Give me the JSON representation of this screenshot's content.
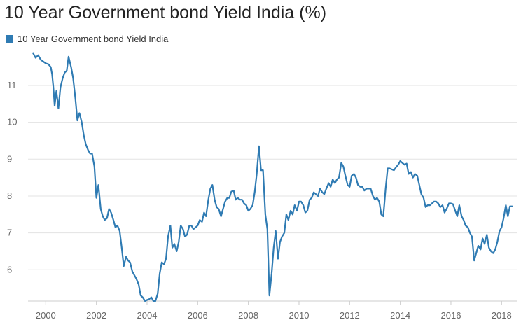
{
  "colors": {
    "series": "#2f7bb3",
    "grid": "#e3e3e3",
    "axis": "#cccccc"
  },
  "chart_data": {
    "type": "line",
    "title": "10 Year Government bond Yield India (%)",
    "xlabel": "",
    "ylabel": "",
    "grid": true,
    "legend_position": "top-left",
    "xlim": [
      1999.3,
      2018.6
    ],
    "ylim": [
      5.15,
      11.95
    ],
    "x_ticks": [
      "2000",
      "2002",
      "2004",
      "2006",
      "2008",
      "2010",
      "2012",
      "2014",
      "2016",
      "2018"
    ],
    "y_ticks": [
      "6",
      "7",
      "8",
      "9",
      "10",
      "11"
    ],
    "series": [
      {
        "name": "10 Year Government bond Yield India",
        "points": [
          [
            1999.5,
            11.88
          ],
          [
            1999.6,
            11.75
          ],
          [
            1999.7,
            11.82
          ],
          [
            1999.8,
            11.7
          ],
          [
            1999.9,
            11.65
          ],
          [
            2000.0,
            11.6
          ],
          [
            2000.1,
            11.58
          ],
          [
            2000.2,
            11.5
          ],
          [
            2000.25,
            11.3
          ],
          [
            2000.3,
            10.95
          ],
          [
            2000.35,
            10.45
          ],
          [
            2000.42,
            10.85
          ],
          [
            2000.5,
            10.38
          ],
          [
            2000.58,
            10.95
          ],
          [
            2000.67,
            11.2
          ],
          [
            2000.75,
            11.35
          ],
          [
            2000.83,
            11.4
          ],
          [
            2000.9,
            11.78
          ],
          [
            2001.0,
            11.5
          ],
          [
            2001.08,
            11.2
          ],
          [
            2001.17,
            10.65
          ],
          [
            2001.25,
            10.05
          ],
          [
            2001.33,
            10.25
          ],
          [
            2001.42,
            10.0
          ],
          [
            2001.5,
            9.65
          ],
          [
            2001.58,
            9.4
          ],
          [
            2001.67,
            9.25
          ],
          [
            2001.75,
            9.15
          ],
          [
            2001.83,
            9.15
          ],
          [
            2001.92,
            8.8
          ],
          [
            2002.0,
            7.95
          ],
          [
            2002.08,
            8.3
          ],
          [
            2002.17,
            7.65
          ],
          [
            2002.25,
            7.45
          ],
          [
            2002.33,
            7.35
          ],
          [
            2002.42,
            7.4
          ],
          [
            2002.5,
            7.65
          ],
          [
            2002.58,
            7.55
          ],
          [
            2002.67,
            7.35
          ],
          [
            2002.75,
            7.15
          ],
          [
            2002.83,
            7.2
          ],
          [
            2002.92,
            7.05
          ],
          [
            2003.0,
            6.6
          ],
          [
            2003.08,
            6.1
          ],
          [
            2003.17,
            6.35
          ],
          [
            2003.25,
            6.25
          ],
          [
            2003.33,
            6.2
          ],
          [
            2003.42,
            5.95
          ],
          [
            2003.5,
            5.85
          ],
          [
            2003.58,
            5.75
          ],
          [
            2003.67,
            5.6
          ],
          [
            2003.75,
            5.3
          ],
          [
            2003.83,
            5.25
          ],
          [
            2003.92,
            5.15
          ],
          [
            2004.0,
            5.18
          ],
          [
            2004.08,
            5.2
          ],
          [
            2004.17,
            5.25
          ],
          [
            2004.25,
            5.15
          ],
          [
            2004.33,
            5.15
          ],
          [
            2004.42,
            5.35
          ],
          [
            2004.5,
            5.9
          ],
          [
            2004.58,
            6.2
          ],
          [
            2004.67,
            6.15
          ],
          [
            2004.75,
            6.3
          ],
          [
            2004.83,
            6.9
          ],
          [
            2004.92,
            7.2
          ],
          [
            2005.0,
            6.6
          ],
          [
            2005.08,
            6.7
          ],
          [
            2005.17,
            6.5
          ],
          [
            2005.25,
            6.75
          ],
          [
            2005.33,
            7.2
          ],
          [
            2005.42,
            7.1
          ],
          [
            2005.5,
            6.9
          ],
          [
            2005.58,
            6.95
          ],
          [
            2005.67,
            7.2
          ],
          [
            2005.75,
            7.2
          ],
          [
            2005.83,
            7.1
          ],
          [
            2005.92,
            7.15
          ],
          [
            2006.0,
            7.2
          ],
          [
            2006.08,
            7.35
          ],
          [
            2006.17,
            7.3
          ],
          [
            2006.25,
            7.55
          ],
          [
            2006.33,
            7.45
          ],
          [
            2006.42,
            7.9
          ],
          [
            2006.5,
            8.2
          ],
          [
            2006.58,
            8.3
          ],
          [
            2006.67,
            7.9
          ],
          [
            2006.75,
            7.7
          ],
          [
            2006.83,
            7.65
          ],
          [
            2006.92,
            7.45
          ],
          [
            2007.0,
            7.65
          ],
          [
            2007.08,
            7.85
          ],
          [
            2007.17,
            7.95
          ],
          [
            2007.25,
            7.95
          ],
          [
            2007.33,
            8.12
          ],
          [
            2007.42,
            8.15
          ],
          [
            2007.5,
            7.9
          ],
          [
            2007.58,
            7.95
          ],
          [
            2007.67,
            7.9
          ],
          [
            2007.75,
            7.9
          ],
          [
            2007.83,
            7.8
          ],
          [
            2007.92,
            7.75
          ],
          [
            2008.0,
            7.6
          ],
          [
            2008.08,
            7.65
          ],
          [
            2008.17,
            7.75
          ],
          [
            2008.25,
            8.1
          ],
          [
            2008.33,
            8.6
          ],
          [
            2008.42,
            9.35
          ],
          [
            2008.5,
            8.7
          ],
          [
            2008.58,
            8.7
          ],
          [
            2008.67,
            7.5
          ],
          [
            2008.75,
            7.1
          ],
          [
            2008.83,
            5.3
          ],
          [
            2008.92,
            5.9
          ],
          [
            2009.0,
            6.6
          ],
          [
            2009.08,
            7.05
          ],
          [
            2009.17,
            6.3
          ],
          [
            2009.25,
            6.75
          ],
          [
            2009.33,
            6.9
          ],
          [
            2009.42,
            7.0
          ],
          [
            2009.5,
            7.5
          ],
          [
            2009.58,
            7.35
          ],
          [
            2009.67,
            7.6
          ],
          [
            2009.75,
            7.5
          ],
          [
            2009.83,
            7.75
          ],
          [
            2009.92,
            7.6
          ],
          [
            2010.0,
            7.85
          ],
          [
            2010.08,
            7.85
          ],
          [
            2010.17,
            7.75
          ],
          [
            2010.25,
            7.55
          ],
          [
            2010.33,
            7.6
          ],
          [
            2010.42,
            7.9
          ],
          [
            2010.5,
            7.95
          ],
          [
            2010.58,
            8.1
          ],
          [
            2010.67,
            8.05
          ],
          [
            2010.75,
            8.0
          ],
          [
            2010.83,
            8.2
          ],
          [
            2010.92,
            8.1
          ],
          [
            2011.0,
            8.05
          ],
          [
            2011.08,
            8.2
          ],
          [
            2011.17,
            8.35
          ],
          [
            2011.25,
            8.25
          ],
          [
            2011.33,
            8.45
          ],
          [
            2011.42,
            8.35
          ],
          [
            2011.5,
            8.45
          ],
          [
            2011.58,
            8.5
          ],
          [
            2011.67,
            8.9
          ],
          [
            2011.75,
            8.8
          ],
          [
            2011.83,
            8.55
          ],
          [
            2011.92,
            8.3
          ],
          [
            2012.0,
            8.25
          ],
          [
            2012.08,
            8.55
          ],
          [
            2012.17,
            8.6
          ],
          [
            2012.25,
            8.5
          ],
          [
            2012.33,
            8.3
          ],
          [
            2012.42,
            8.25
          ],
          [
            2012.5,
            8.25
          ],
          [
            2012.58,
            8.15
          ],
          [
            2012.67,
            8.2
          ],
          [
            2012.75,
            8.2
          ],
          [
            2012.83,
            8.2
          ],
          [
            2012.92,
            8.0
          ],
          [
            2013.0,
            7.9
          ],
          [
            2013.08,
            7.95
          ],
          [
            2013.17,
            7.85
          ],
          [
            2013.25,
            7.5
          ],
          [
            2013.33,
            7.45
          ],
          [
            2013.42,
            8.2
          ],
          [
            2013.5,
            8.75
          ],
          [
            2013.58,
            8.75
          ],
          [
            2013.67,
            8.72
          ],
          [
            2013.75,
            8.7
          ],
          [
            2013.83,
            8.78
          ],
          [
            2013.92,
            8.85
          ],
          [
            2014.0,
            8.95
          ],
          [
            2014.08,
            8.9
          ],
          [
            2014.17,
            8.85
          ],
          [
            2014.25,
            8.88
          ],
          [
            2014.33,
            8.6
          ],
          [
            2014.42,
            8.65
          ],
          [
            2014.5,
            8.5
          ],
          [
            2014.58,
            8.6
          ],
          [
            2014.67,
            8.55
          ],
          [
            2014.75,
            8.3
          ],
          [
            2014.83,
            8.05
          ],
          [
            2014.92,
            7.95
          ],
          [
            2015.0,
            7.7
          ],
          [
            2015.08,
            7.75
          ],
          [
            2015.17,
            7.75
          ],
          [
            2015.25,
            7.8
          ],
          [
            2015.33,
            7.85
          ],
          [
            2015.42,
            7.85
          ],
          [
            2015.5,
            7.8
          ],
          [
            2015.58,
            7.7
          ],
          [
            2015.67,
            7.75
          ],
          [
            2015.75,
            7.55
          ],
          [
            2015.83,
            7.65
          ],
          [
            2015.92,
            7.8
          ],
          [
            2016.0,
            7.8
          ],
          [
            2016.08,
            7.78
          ],
          [
            2016.17,
            7.6
          ],
          [
            2016.25,
            7.45
          ],
          [
            2016.33,
            7.75
          ],
          [
            2016.42,
            7.45
          ],
          [
            2016.5,
            7.35
          ],
          [
            2016.58,
            7.2
          ],
          [
            2016.67,
            7.15
          ],
          [
            2016.75,
            7.0
          ],
          [
            2016.83,
            6.9
          ],
          [
            2016.92,
            6.25
          ],
          [
            2017.0,
            6.45
          ],
          [
            2017.08,
            6.65
          ],
          [
            2017.17,
            6.55
          ],
          [
            2017.25,
            6.85
          ],
          [
            2017.33,
            6.7
          ],
          [
            2017.42,
            6.95
          ],
          [
            2017.5,
            6.6
          ],
          [
            2017.58,
            6.5
          ],
          [
            2017.67,
            6.45
          ],
          [
            2017.75,
            6.55
          ],
          [
            2017.83,
            6.75
          ],
          [
            2017.92,
            7.05
          ],
          [
            2018.0,
            7.15
          ],
          [
            2018.08,
            7.4
          ],
          [
            2018.17,
            7.75
          ],
          [
            2018.25,
            7.45
          ],
          [
            2018.33,
            7.72
          ],
          [
            2018.42,
            7.72
          ]
        ]
      }
    ]
  }
}
